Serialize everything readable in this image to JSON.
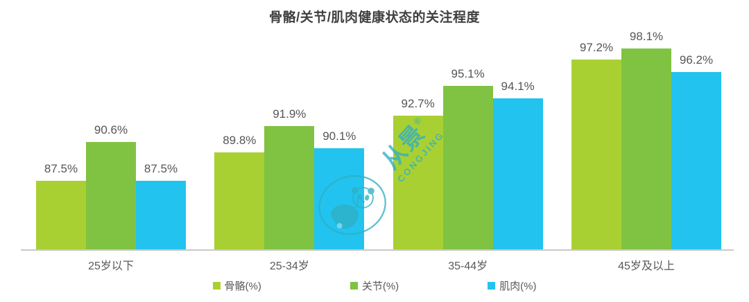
{
  "title": "骨骼/关节/肌肉健康状态的关注程度",
  "chart_data": {
    "type": "bar",
    "title": "骨骼/关节/肌肉健康状态的关注程度",
    "categories": [
      "25岁以下",
      "25-34岁",
      "35-44岁",
      "45岁及以上"
    ],
    "series": [
      {
        "name": "骨骼(%)",
        "color": "#a9d033",
        "values": [
          87.5,
          89.8,
          92.7,
          97.2
        ]
      },
      {
        "name": "关节(%)",
        "color": "#80c342",
        "values": [
          90.6,
          91.9,
          95.1,
          98.1
        ]
      },
      {
        "name": "肌肉(%)",
        "color": "#22c3ee",
        "values": [
          87.5,
          90.1,
          94.1,
          96.2
        ]
      }
    ],
    "value_suffix": "%",
    "data_labels": true,
    "xlabel": "",
    "ylabel": "",
    "ylim": [
      82,
      100
    ],
    "grid": false,
    "legend_position": "bottom",
    "axis_line_color": "#c9c9c9"
  },
  "watermark": {
    "logo_text": "从景",
    "registered_mark": "®",
    "subtext": "CONGJING",
    "color": "#2fafc4",
    "icon": "panda-logo-icon"
  },
  "colors": {
    "title_text": "#3f3f3f",
    "label_text": "#595959",
    "value_text": "#555555",
    "background": "#ffffff"
  }
}
